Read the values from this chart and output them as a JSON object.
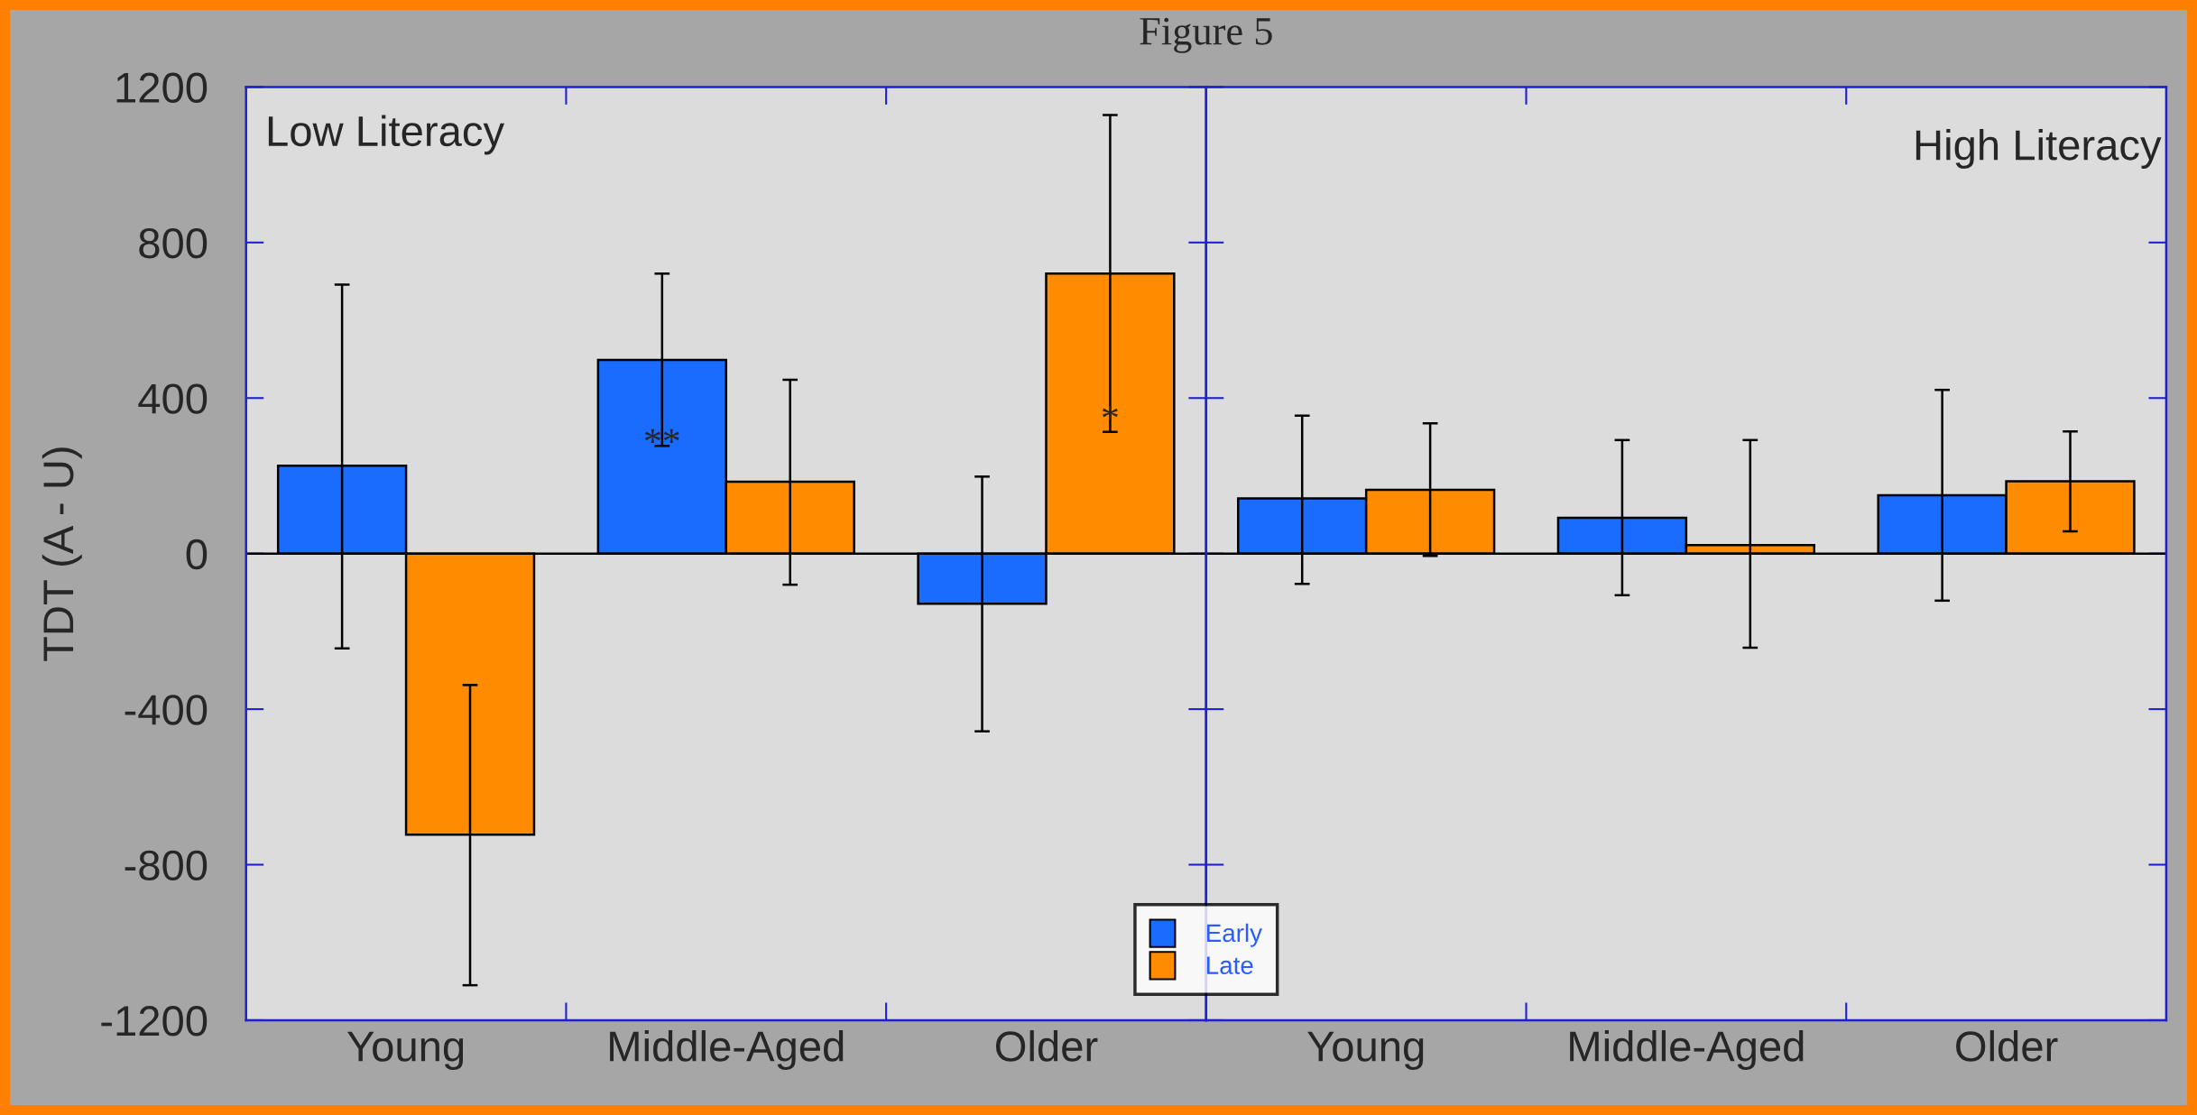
{
  "chart_data": [
    {
      "type": "bar",
      "title": "Figure 5",
      "ylabel": "TDT (A - U)",
      "categories": [
        "Young",
        "Middle-Aged",
        "Older"
      ],
      "series": [
        {
          "name": "Early",
          "color": "#1a6cff",
          "values": [
            226,
            498,
            -129
          ],
          "errors": [
            [
              -244,
              692
            ],
            [
              277,
              720
            ],
            [
              -457,
              198
            ]
          ]
        },
        {
          "name": "Late",
          "color": "#ff8c00",
          "values": [
            -723,
            185,
            720
          ],
          "errors": [
            [
              -1110,
              -338
            ],
            [
              -80,
              447
            ],
            [
              313,
              1128
            ]
          ]
        }
      ],
      "ylim": [
        -1200,
        1200
      ],
      "yticks": [
        -1200,
        -800,
        -400,
        0,
        400,
        800,
        1200
      ],
      "annotations": [
        "Low Literacy",
        {
          "text": "**",
          "x": "Middle-Aged",
          "y": 280
        },
        {
          "text": "*",
          "x": "Older",
          "y": 340
        }
      ],
      "legend": "bottom right"
    },
    {
      "type": "bar",
      "categories": [
        "Young",
        "Middle-Aged",
        "Older"
      ],
      "series": [
        {
          "color": "#1a6cff",
          "values": [
            142,
            92,
            150
          ],
          "errors": [
            [
              -78,
              355
            ],
            [
              -107,
              292
            ],
            [
              -121,
              421
            ]
          ]
        },
        {
          "color": "#ff8c00",
          "values": [
            164,
            22,
            186
          ],
          "errors": [
            [
              -6,
              335
            ],
            [
              -242,
              292
            ],
            [
              57,
              314
            ]
          ]
        }
      ],
      "ylim": [
        -1200,
        1200
      ],
      "yticks": [
        -1200,
        -800,
        -400,
        0,
        400,
        800,
        1200
      ],
      "annotations": [
        "High Literacy"
      ],
      "tick_labels": "x"
    }
  ]
}
